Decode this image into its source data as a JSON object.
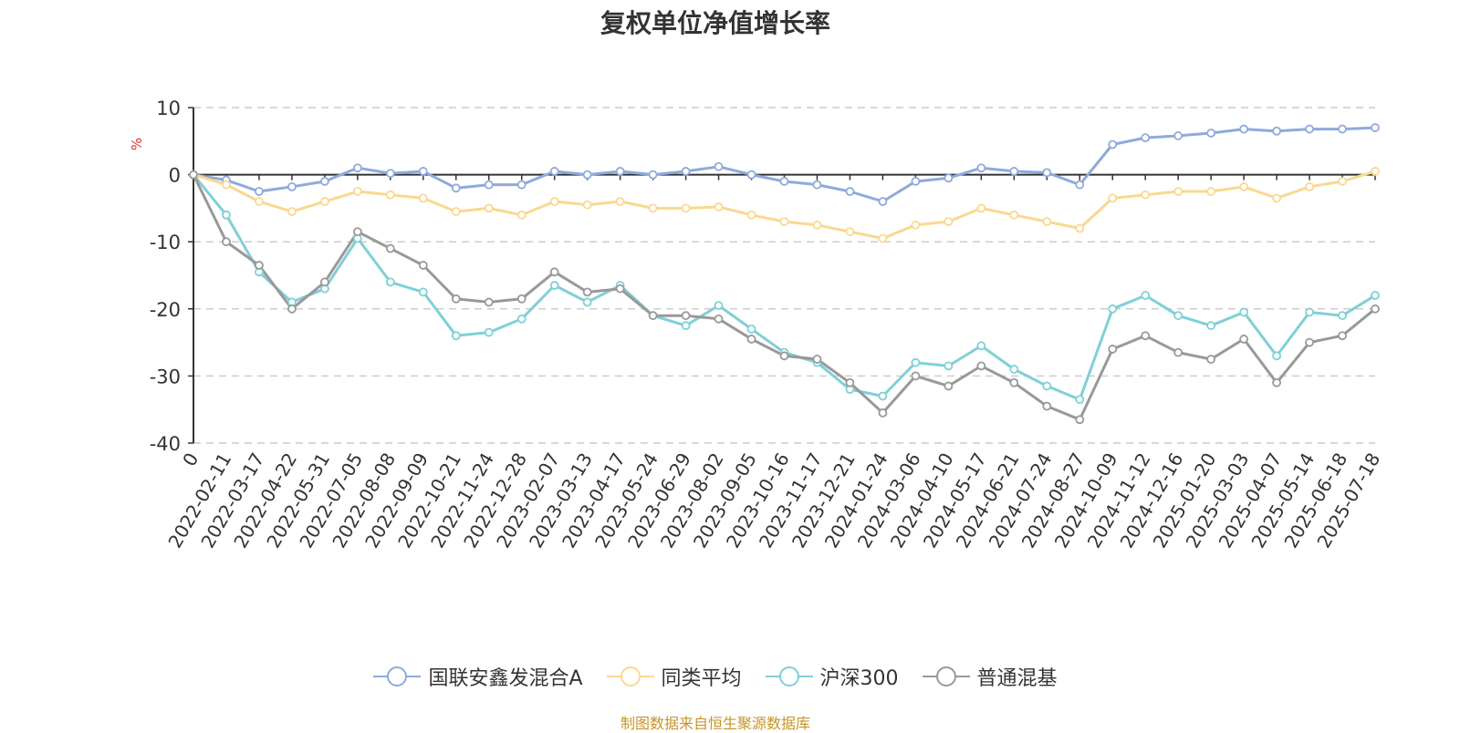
{
  "chart_data": {
    "type": "line",
    "title": "复权单位净值增长率",
    "ylabel": "%",
    "ylim": [
      -40,
      10
    ],
    "yticks": [
      10,
      0,
      -10,
      -20,
      -30,
      -40
    ],
    "grid": true,
    "legend_position": "bottom",
    "x_tick_labels": [
      "0",
      "2022-02-11",
      "2022-03-17",
      "2022-04-22",
      "2022-05-31",
      "2022-07-05",
      "2022-08-08",
      "2022-09-09",
      "2022-10-21",
      "2022-11-24",
      "2022-12-28",
      "2023-02-07",
      "2023-03-13",
      "2023-04-17",
      "2023-05-24",
      "2023-06-29",
      "2023-08-02",
      "2023-09-05",
      "2023-10-16",
      "2023-11-17",
      "2023-12-21",
      "2024-01-24",
      "2024-03-06",
      "2024-04-10",
      "2024-05-17",
      "2024-06-21",
      "2024-07-24",
      "2024-08-27",
      "2024-10-09",
      "2024-11-12",
      "2024-12-16",
      "2025-01-20",
      "2025-03-03",
      "2025-04-07",
      "2025-05-14",
      "2025-06-18",
      "2025-07-18"
    ],
    "series": [
      {
        "name": "国联安鑫发混合A",
        "color": "#8eaadb",
        "values": [
          0,
          -0.8,
          -2.5,
          -1.8,
          -1.0,
          1.0,
          0.2,
          0.5,
          -2.0,
          -1.5,
          -1.5,
          0.5,
          0.0,
          0.5,
          0.0,
          0.5,
          1.2,
          0.0,
          -1.0,
          -1.5,
          -2.5,
          -4.0,
          -1.0,
          -0.5,
          1.0,
          0.5,
          0.3,
          -1.5,
          4.5,
          5.5,
          5.8,
          6.2,
          6.8,
          6.5,
          6.8,
          6.8,
          7.0
        ]
      },
      {
        "name": "同类平均",
        "color": "#fad890",
        "values": [
          0,
          -1.5,
          -4.0,
          -5.5,
          -4.0,
          -2.5,
          -3.0,
          -3.5,
          -5.5,
          -5.0,
          -6.0,
          -4.0,
          -4.5,
          -4.0,
          -5.0,
          -5.0,
          -4.8,
          -6.0,
          -7.0,
          -7.5,
          -8.5,
          -9.5,
          -7.5,
          -7.0,
          -5.0,
          -6.0,
          -7.0,
          -8.0,
          -3.5,
          -3.0,
          -2.5,
          -2.5,
          -1.8,
          -3.5,
          -1.8,
          -1.0,
          0.5
        ]
      },
      {
        "name": "沪深300",
        "color": "#7fd0d6",
        "values": [
          0,
          -6.0,
          -14.5,
          -19.0,
          -17.0,
          -9.5,
          -16.0,
          -17.5,
          -24.0,
          -23.5,
          -21.5,
          -16.5,
          -19.0,
          -16.5,
          -21.0,
          -22.5,
          -19.5,
          -23.0,
          -26.5,
          -28.0,
          -32.0,
          -33.0,
          -28.0,
          -28.5,
          -25.5,
          -29.0,
          -31.5,
          -33.5,
          -20.0,
          -18.0,
          -21.0,
          -22.5,
          -20.5,
          -27.0,
          -20.5,
          -21.0,
          -18.0
        ]
      },
      {
        "name": "普通混基",
        "color": "#999999",
        "values": [
          0,
          -10.0,
          -13.5,
          -20.0,
          -16.0,
          -8.5,
          -11.0,
          -13.5,
          -18.5,
          -19.0,
          -18.5,
          -14.5,
          -17.5,
          -17.0,
          -21.0,
          -21.0,
          -21.5,
          -24.5,
          -27.0,
          -27.5,
          -31.0,
          -35.5,
          -30.0,
          -31.5,
          -28.5,
          -31.0,
          -34.5,
          -36.5,
          -26.0,
          -24.0,
          -26.5,
          -27.5,
          -24.5,
          -31.0,
          -25.0,
          -24.0,
          -20.0
        ]
      }
    ]
  },
  "source_note": "制图数据来自恒生聚源数据库"
}
